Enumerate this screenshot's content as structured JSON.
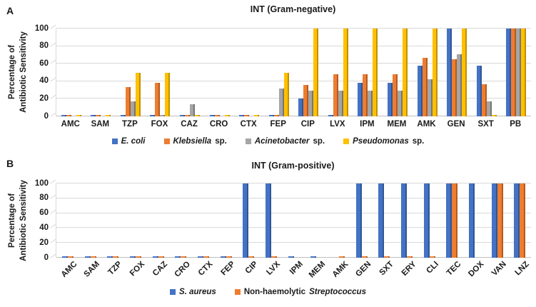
{
  "figure": {
    "background": "#ffffff"
  },
  "chart_data": [
    {
      "type": "bar",
      "panel_letter": "A",
      "title": "INT (Gram-negative)",
      "ylabel_lines": [
        "Percentage of",
        "Antibiotic Sensitivity"
      ],
      "yticks": [
        0,
        20,
        40,
        60,
        80,
        100
      ],
      "ylim": [
        0,
        100
      ],
      "grid": true,
      "legend_position": "bottom",
      "x_label_rotation": 0,
      "categories": [
        "AMC",
        "SAM",
        "TZP",
        "FOX",
        "CAZ",
        "CRO",
        "CTX",
        "FEP",
        "CIP",
        "LVX",
        "IPM",
        "MEM",
        "AMK",
        "GEN",
        "SXT",
        "PB"
      ],
      "series": [
        {
          "name": "E. coli",
          "name_segments": [
            {
              "text": "E. coli",
              "italic": true
            }
          ],
          "color": "#4472C4",
          "edge": "#2F5597",
          "values": [
            1,
            1,
            1,
            1,
            1,
            1,
            1,
            1,
            20,
            1,
            38,
            38,
            58,
            100,
            58,
            100
          ]
        },
        {
          "name": "Klebsiella sp.",
          "name_segments": [
            {
              "text": "Klebsiella",
              "italic": true
            },
            {
              "text": " sp.",
              "italic": false
            }
          ],
          "color": "#ED7D31",
          "edge": "#B55A1E",
          "values": [
            1,
            1,
            33,
            38,
            1,
            1,
            1,
            1,
            36,
            48,
            48,
            48,
            67,
            65,
            37,
            100
          ]
        },
        {
          "name": "Acinetobacter sp.",
          "name_segments": [
            {
              "text": "Acinetobacter",
              "italic": true
            },
            {
              "text": " sp.",
              "italic": false
            }
          ],
          "color": "#A5A5A5",
          "edge": "#767676",
          "values": [
            0,
            0,
            17,
            1,
            14,
            0,
            0,
            32,
            29,
            29,
            29,
            29,
            42,
            71,
            17,
            100
          ]
        },
        {
          "name": "Pseudomonas sp.",
          "name_segments": [
            {
              "text": "Pseudomonas",
              "italic": true
            },
            {
              "text": " sp.",
              "italic": false
            }
          ],
          "color": "#FFC000",
          "edge": "#BF9000",
          "values": [
            1,
            1,
            50,
            50,
            1,
            1,
            1,
            50,
            100,
            100,
            100,
            100,
            100,
            100,
            1,
            100
          ]
        }
      ]
    },
    {
      "type": "bar",
      "panel_letter": "B",
      "title": "INT (Gram-positive)",
      "ylabel_lines": [
        "Percentage of",
        "Antibiotic Sensitivity"
      ],
      "yticks": [
        0,
        20,
        40,
        60,
        80,
        100
      ],
      "ylim": [
        0,
        100
      ],
      "grid": true,
      "legend_position": "bottom",
      "x_label_rotation": -45,
      "categories": [
        "AMC",
        "SAM",
        "TZP",
        "FOX",
        "CAZ",
        "CRO",
        "CTX",
        "FEP",
        "CIP",
        "LVX",
        "IPM",
        "MEM",
        "AMK",
        "GEN",
        "SXT",
        "ERY",
        "CLI",
        "TEC",
        "DOX",
        "VAN",
        "LNZ"
      ],
      "series": [
        {
          "name": "S. aureus",
          "name_segments": [
            {
              "text": "S. aureus",
              "italic": true
            }
          ],
          "color": "#4472C4",
          "edge": "#2F5597",
          "values": [
            1,
            1,
            1,
            1,
            1,
            1,
            1,
            1,
            100,
            100,
            1,
            1,
            0,
            100,
            100,
            100,
            100,
            100,
            100,
            100,
            100
          ]
        },
        {
          "name": "Non-haemolytic Streptococcus",
          "name_segments": [
            {
              "text": "Non-haemolytic ",
              "italic": false
            },
            {
              "text": "Streptococcus",
              "italic": true
            }
          ],
          "color": "#ED7D31",
          "edge": "#B55A1E",
          "values": [
            1,
            1,
            1,
            1,
            1,
            1,
            1,
            1,
            1,
            1,
            0,
            0,
            1,
            1,
            1,
            1,
            1,
            100,
            0,
            100,
            100
          ]
        }
      ]
    }
  ]
}
